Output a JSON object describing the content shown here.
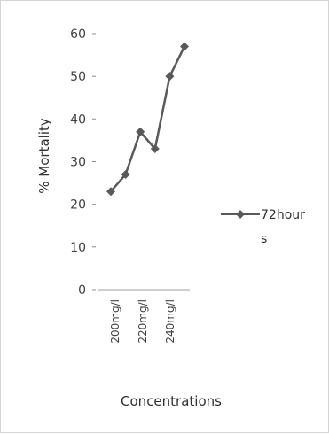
{
  "chart_data": {
    "type": "line",
    "xlabel": "Concentrations",
    "ylabel": "% Mortality",
    "ylim": [
      0,
      60
    ],
    "yticks": [
      "0",
      "10",
      "20",
      "30",
      "40",
      "50",
      "60"
    ],
    "x": [
      200,
      210,
      220,
      230,
      240,
      250
    ],
    "category_labels": [
      "200mg/l",
      "220mg/l",
      "240mg/l"
    ],
    "series": [
      {
        "name": "72hours",
        "values": [
          23,
          27,
          37,
          33,
          50,
          57
        ],
        "color": "#595959",
        "marker": "diamond"
      }
    ],
    "legend_position": "right",
    "grid": false
  }
}
